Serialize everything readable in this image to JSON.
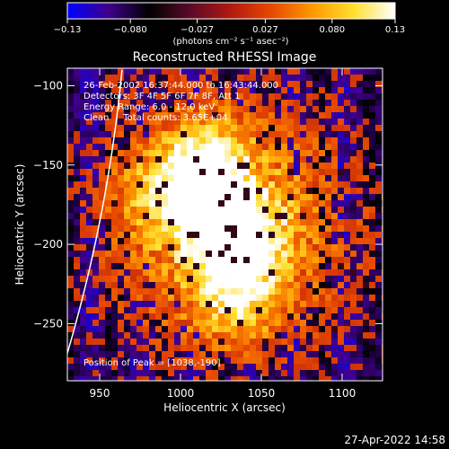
{
  "colorbar": {
    "tick_labels": [
      "−0.13",
      "−0.080",
      "−0.027",
      "0.027",
      "0.080",
      "0.13"
    ],
    "tick_values": [
      -0.13,
      -0.08,
      -0.027,
      0.027,
      0.08,
      0.13
    ],
    "range": [
      -0.13,
      0.13
    ],
    "unit_label": "(photons cm⁻² s⁻¹ asec⁻²)",
    "colors": [
      "#0000ff",
      "#40008c",
      "#000000",
      "#5a0a2a",
      "#b21a10",
      "#e84a00",
      "#ff9a00",
      "#ffe030",
      "#ffffff"
    ]
  },
  "chart_data": {
    "type": "heatmap",
    "title": "Reconstructed RHESSI Image",
    "xlabel": "Heliocentric X (arcsec)",
    "ylabel": "Heliocentric Y (arcsec)",
    "xlim": [
      930,
      1125
    ],
    "ylim": [
      -286,
      -89
    ],
    "x_ticks": [
      950,
      1000,
      1050,
      1100
    ],
    "y_ticks": [
      -100,
      -150,
      -200,
      -250
    ],
    "x_tick_labels": [
      "950",
      "1000",
      "1050",
      "1100"
    ],
    "y_tick_labels": [
      "−100",
      "−150",
      "−200",
      "−250"
    ],
    "sources": [
      {
        "x": 1014,
        "y": -150,
        "relative_intensity": 1.0
      },
      {
        "x": 1036,
        "y": -190,
        "relative_intensity": 0.95
      },
      {
        "x": 1030,
        "y": -205,
        "relative_intensity": 0.7
      },
      {
        "x": 1036,
        "y": -236,
        "relative_intensity": 0.6
      },
      {
        "x": 1016,
        "y": -175,
        "relative_intensity": 0.55
      },
      {
        "x": 985,
        "y": -170,
        "relative_intensity": 0.45
      }
    ],
    "peak_position": [
      1038,
      -190
    ],
    "annotations": [
      "26-Feb-2002 16:37:44.000 to 16:43:44.000",
      "Detectors: 3F 4F 5F 6F 7F 8F, Att 1",
      "Energy Range: 6.0 - 12.0 keV",
      "Clean     Total counts: 3.65E+04"
    ],
    "peak_label": "Position of Peak = [1038,-190]",
    "grid": false
  },
  "footer": {
    "timestamp": "27-Apr-2022 14:58"
  }
}
